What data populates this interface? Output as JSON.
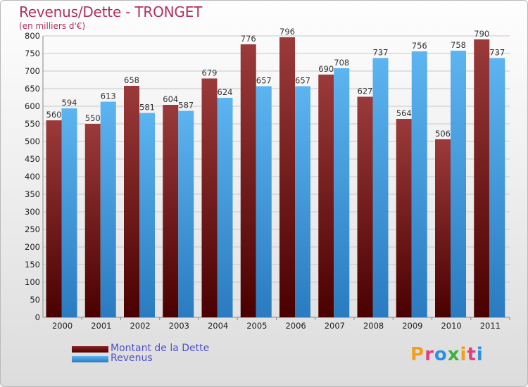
{
  "title": "Revenus/Dette - TRONGET",
  "subtitle": "(en milliers d'€)",
  "brand": "Proxiti",
  "chart_data": {
    "type": "bar",
    "categories": [
      "2000",
      "2001",
      "2002",
      "2003",
      "2004",
      "2005",
      "2006",
      "2007",
      "2008",
      "2009",
      "2010",
      "2011"
    ],
    "series": [
      {
        "name": "Montant de la Dette",
        "values": [
          560,
          550,
          658,
          604,
          679,
          776,
          796,
          690,
          627,
          564,
          506,
          790
        ],
        "color": "#7a0e12"
      },
      {
        "name": "Revenus",
        "values": [
          594,
          613,
          581,
          587,
          624,
          657,
          657,
          708,
          737,
          756,
          758,
          737
        ],
        "color": "#4aa3e6"
      }
    ],
    "ylim": [
      0,
      800
    ],
    "yticks": [
      0,
      50,
      100,
      150,
      200,
      250,
      300,
      350,
      400,
      450,
      500,
      550,
      600,
      650,
      700,
      750,
      800
    ],
    "grid": true,
    "legend": "bottom"
  }
}
